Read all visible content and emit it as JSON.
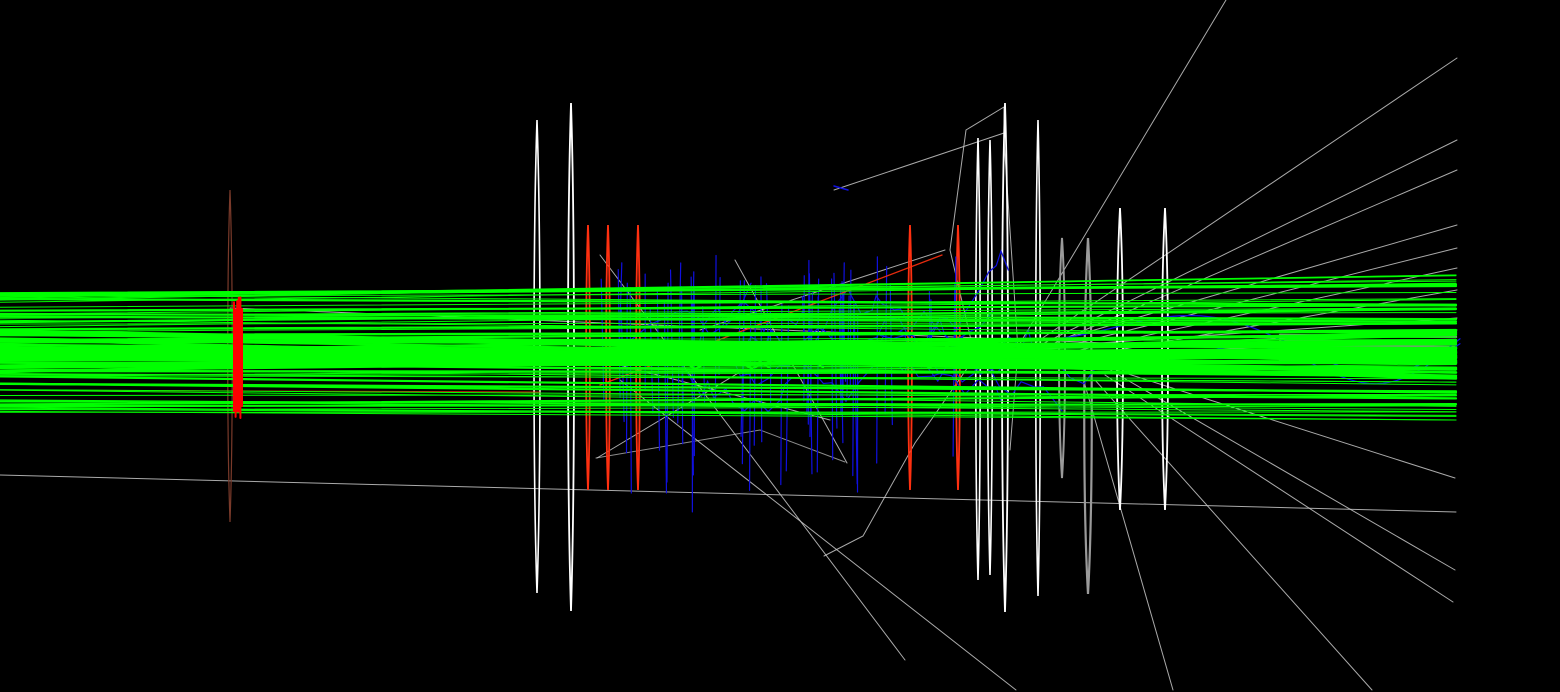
{
  "scene": {
    "kind": "particle-event-display",
    "background_color": "#000000",
    "colors": {
      "primary_tracks": "#00ff00",
      "secondary_tracks": "#c8c8c8",
      "charged_curl_tracks": "#1010e0",
      "detector_planes_white": "#ffffff",
      "detector_planes_red": "#ff3010",
      "detector_planes_gray": "#9a9a9a",
      "detector_plane_brown": "#7a3a2a",
      "target_hits": "#ff0000"
    }
  }
}
